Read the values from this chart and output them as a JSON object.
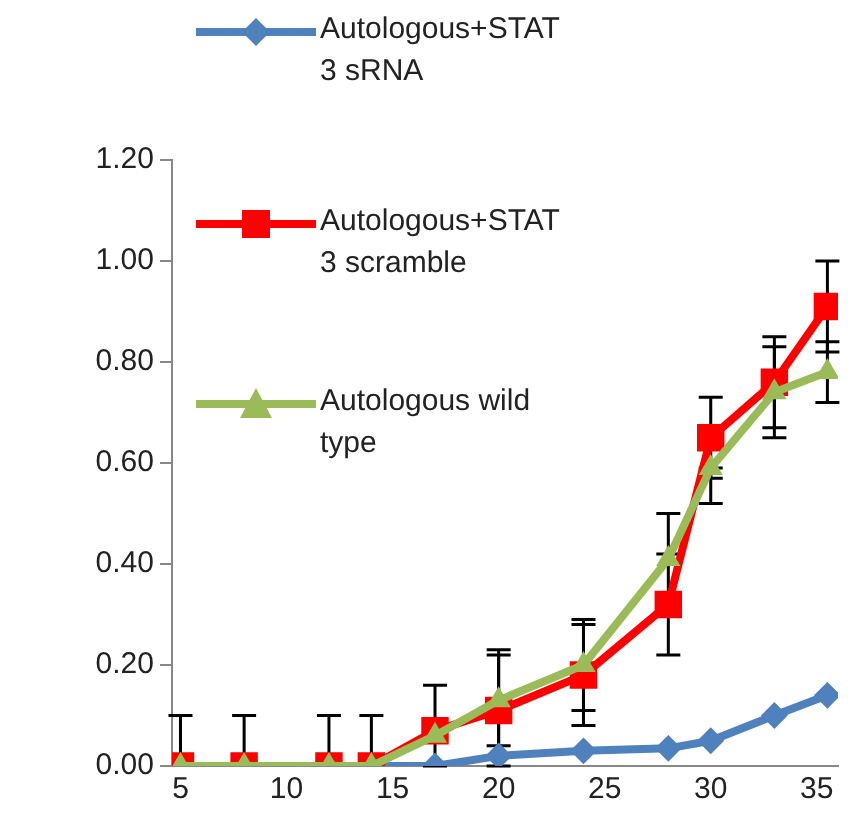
{
  "chart_data": {
    "type": "line",
    "x": [
      5,
      8,
      12,
      14,
      17,
      20,
      24,
      28,
      30,
      33,
      35.5
    ],
    "xlim": [
      4.6,
      36
    ],
    "xticks": [
      5,
      10,
      15,
      20,
      25,
      30,
      35
    ],
    "ylim": [
      0,
      1.2
    ],
    "yticks": [
      {
        "value": 0,
        "label": "0.00"
      },
      {
        "value": 0.2,
        "label": "0.20"
      },
      {
        "value": 0.4,
        "label": "0.40"
      },
      {
        "value": 0.6,
        "label": "0.60"
      },
      {
        "value": 0.8,
        "label": "0.80"
      },
      {
        "value": 1,
        "label": "1.00"
      },
      {
        "value": 1.2,
        "label": "1.20"
      }
    ],
    "grid": false,
    "legend": "top left",
    "series": [
      {
        "name": "Autologous+STAT3 sRNA",
        "color": "#4f81bd",
        "marker": "diamond",
        "values": [
          null,
          null,
          null,
          0,
          0,
          0.02,
          0.03,
          0.035,
          0.05,
          0.1,
          0.14
        ]
      },
      {
        "name": "Autologous+STAT3 scramble",
        "color": "#ff0000",
        "marker": "square",
        "values": [
          0,
          0,
          0,
          0,
          0.07,
          0.11,
          0.18,
          0.32,
          0.65,
          0.76,
          0.91
        ],
        "errors": [
          [
            0,
            0.1
          ],
          [
            0,
            0.1
          ],
          [
            0,
            0.1
          ],
          [
            0,
            0.1
          ],
          [
            0,
            0.16
          ],
          [
            0,
            0.22
          ],
          [
            0.08,
            0.28
          ],
          [
            0.22,
            0.42
          ],
          [
            0.57,
            0.73
          ],
          [
            0.67,
            0.85
          ],
          [
            0.82,
            1
          ]
        ]
      },
      {
        "name": "Autologous wild type",
        "color": "#9bbb59",
        "marker": "triangle",
        "values": [
          0,
          0,
          0,
          0,
          0.06,
          0.13,
          0.2,
          0.41,
          0.59,
          0.74,
          0.78
        ],
        "errors": [
          null,
          null,
          null,
          null,
          null,
          [
            0.04,
            0.23
          ],
          [
            0.11,
            0.29
          ],
          [
            0.41,
            0.5
          ],
          [
            0.52,
            0.59
          ],
          [
            0.65,
            0.83
          ],
          [
            0.72,
            0.84
          ]
        ]
      }
    ]
  }
}
